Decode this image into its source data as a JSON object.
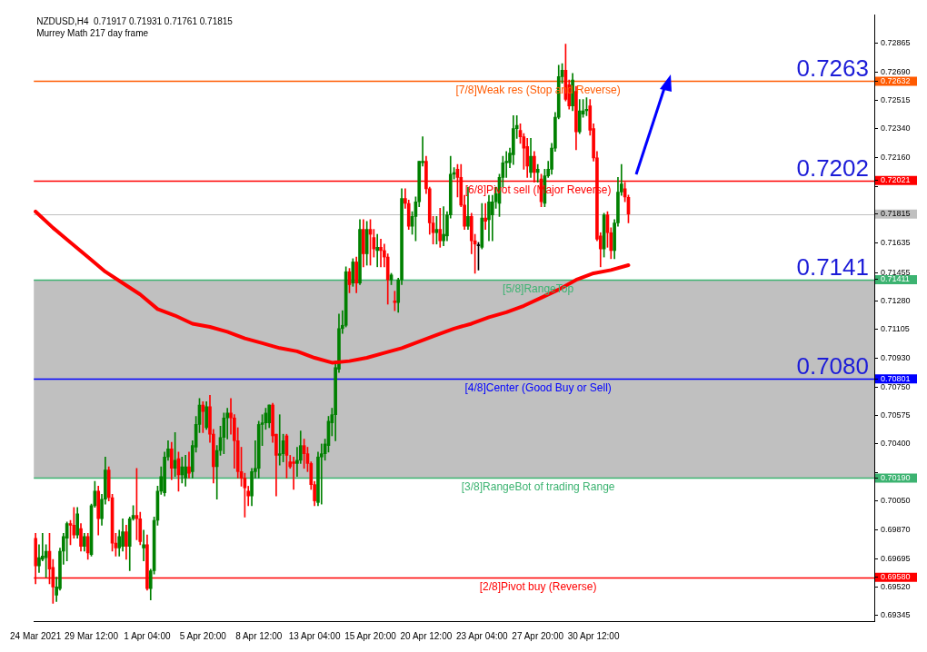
{
  "chart_data": {
    "type": "candlestick",
    "title": "NZDUSD,H4  0.71917 0.71931 0.71761 0.71815",
    "subtitle": "Murrey Math 217 day frame",
    "categories": [
      "24 Mar 2021",
      null,
      null,
      null,
      null,
      null,
      null,
      null,
      null,
      null,
      null,
      null,
      null,
      null,
      null,
      null,
      "29 Mar 12:00",
      null,
      null,
      null,
      null,
      null,
      null,
      null,
      null,
      null,
      null,
      null,
      null,
      null,
      null,
      null,
      "1 Apr 04:00",
      null,
      null,
      null,
      null,
      null,
      null,
      null,
      null,
      null,
      null,
      null,
      null,
      null,
      null,
      null,
      "5 Apr 20:00",
      null,
      null,
      null,
      null,
      null,
      null,
      null,
      null,
      null,
      null,
      null,
      null,
      null,
      null,
      null,
      "8 Apr 12:00",
      null,
      null,
      null,
      null,
      null,
      null,
      null,
      null,
      null,
      null,
      null,
      null,
      null,
      null,
      null,
      "13 Apr 04:00",
      null,
      null,
      null,
      null,
      null,
      null,
      null,
      null,
      null,
      null,
      null,
      null,
      null,
      null,
      null,
      "15 Apr 20:00",
      null,
      null,
      null,
      null,
      null,
      null,
      null,
      null,
      null,
      null,
      null,
      null,
      null,
      null,
      null,
      "20 Apr 12:00",
      null,
      null,
      null,
      null,
      null,
      null,
      null,
      null,
      null,
      null,
      null,
      null,
      null,
      null,
      null,
      "23 Apr 04:00",
      null,
      null,
      null,
      null,
      null,
      null,
      null,
      null,
      null,
      null,
      null,
      null,
      null,
      null,
      null,
      "27 Apr 20:00",
      null,
      null,
      null,
      null,
      null,
      null,
      null,
      null,
      null,
      null,
      null,
      null,
      null,
      null,
      null,
      "30 Apr 12:00",
      null,
      null,
      null,
      null,
      null,
      null,
      null,
      null,
      null,
      null,
      null,
      null,
      null,
      null,
      null,
      null,
      null,
      null,
      null,
      null,
      null,
      null,
      null,
      null,
      null,
      null,
      null,
      null,
      null,
      null,
      null,
      null,
      null,
      null,
      null,
      null,
      null,
      null,
      null,
      null,
      null,
      null,
      null,
      null,
      null,
      null,
      null,
      null,
      null,
      null,
      null,
      null,
      null,
      null,
      null,
      null,
      null,
      null,
      null,
      null,
      null,
      null,
      null,
      null,
      null,
      null,
      null,
      null,
      null,
      null,
      null,
      null,
      null,
      null,
      null,
      null,
      null,
      null,
      null,
      null
    ],
    "ohlc": [
      [
        0.6982,
        0.6985,
        0.6954,
        0.6965
      ],
      [
        0.6965,
        0.6978,
        0.6961,
        0.697
      ],
      [
        0.6969,
        0.6985,
        0.6968,
        0.6971
      ],
      [
        0.697,
        0.6978,
        0.6958,
        0.6974
      ],
      [
        0.6974,
        0.6985,
        0.6954,
        0.6963
      ],
      [
        0.6964,
        0.6969,
        0.6942,
        0.6952
      ],
      [
        0.6947,
        0.6958,
        0.6943,
        0.6952
      ],
      [
        0.6951,
        0.6976,
        0.695,
        0.6974
      ],
      [
        0.6974,
        0.6985,
        0.6966,
        0.6983
      ],
      [
        0.6982,
        0.6992,
        0.6968,
        0.6991
      ],
      [
        0.6991,
        0.6993,
        0.6978,
        0.699
      ],
      [
        0.699,
        0.7001,
        0.6982,
        0.6984
      ],
      [
        0.6984,
        0.7001,
        0.6982,
        0.6997
      ],
      [
        0.6988,
        0.6991,
        0.6974,
        0.6977
      ],
      [
        0.6977,
        0.6985,
        0.6974,
        0.6983
      ],
      [
        0.6983,
        0.6985,
        0.6969,
        0.6973
      ],
      [
        0.6972,
        0.7003,
        0.6971,
        0.7002
      ],
      [
        0.7002,
        0.7017,
        0.7001,
        0.7011
      ],
      [
        0.7011,
        0.7014,
        0.6984,
        0.6994
      ],
      [
        0.6994,
        0.7009,
        0.699,
        0.7006
      ],
      [
        0.7006,
        0.7032,
        0.7003,
        0.7024
      ],
      [
        0.7024,
        0.7026,
        0.7005,
        0.7007
      ],
      [
        0.7007,
        0.7009,
        0.6974,
        0.6979
      ],
      [
        0.6979,
        0.6985,
        0.6971,
        0.6976
      ],
      [
        0.6976,
        0.6987,
        0.6971,
        0.6983
      ],
      [
        0.6977,
        0.6994,
        0.6974,
        0.6986
      ],
      [
        0.6986,
        0.699,
        0.6969,
        0.6977
      ],
      [
        0.6977,
        0.6995,
        0.6962,
        0.6994
      ],
      [
        0.6994,
        0.7002,
        0.6993,
        0.6996
      ],
      [
        0.6996,
        0.7025,
        0.6981,
        0.6994
      ],
      [
        0.6994,
        0.6998,
        0.6978,
        0.698
      ],
      [
        0.6976,
        0.6987,
        0.6968,
        0.6978
      ],
      [
        0.6978,
        0.6984,
        0.695,
        0.6951
      ],
      [
        0.6951,
        0.6963,
        0.6944,
        0.6962
      ],
      [
        0.6962,
        0.6995,
        0.696,
        0.6993
      ],
      [
        0.6993,
        0.7014,
        0.699,
        0.7011
      ],
      [
        0.7011,
        0.7026,
        0.7009,
        0.702
      ],
      [
        0.701,
        0.7035,
        0.7008,
        0.7032
      ],
      [
        0.7032,
        0.7042,
        0.703,
        0.7037
      ],
      [
        0.7037,
        0.7041,
        0.7018,
        0.7025
      ],
      [
        0.7025,
        0.7047,
        0.702,
        0.703
      ],
      [
        0.7031,
        0.7035,
        0.7011,
        0.7021
      ],
      [
        0.7021,
        0.7032,
        0.7016,
        0.7026
      ],
      [
        0.7019,
        0.7033,
        0.7014,
        0.7026
      ],
      [
        0.7026,
        0.7035,
        0.7019,
        0.7022
      ],
      [
        0.7023,
        0.7042,
        0.7019,
        0.7039
      ],
      [
        0.7038,
        0.7057,
        0.7035,
        0.7052
      ],
      [
        0.7052,
        0.7068,
        0.7047,
        0.7064
      ],
      [
        0.7064,
        0.7066,
        0.7047,
        0.706
      ],
      [
        0.705,
        0.7066,
        0.7049,
        0.7063
      ],
      [
        0.7063,
        0.707,
        0.7041,
        0.7046
      ],
      [
        0.7046,
        0.7049,
        0.7016,
        0.7026
      ],
      [
        0.7026,
        0.7039,
        0.7006,
        0.7036
      ],
      [
        0.7036,
        0.7051,
        0.7033,
        0.7044
      ],
      [
        0.7044,
        0.7059,
        0.7034,
        0.7056
      ],
      [
        0.7056,
        0.7062,
        0.7043,
        0.7059
      ],
      [
        0.7059,
        0.7068,
        0.7046,
        0.7056
      ],
      [
        0.7056,
        0.7058,
        0.7025,
        0.7042
      ],
      [
        0.7042,
        0.705,
        0.7019,
        0.7023
      ],
      [
        0.7023,
        0.7038,
        0.7014,
        0.7019
      ],
      [
        0.7019,
        0.7022,
        0.6995,
        0.7013
      ],
      [
        0.7011,
        0.7014,
        0.7002,
        0.7008
      ],
      [
        0.7008,
        0.7025,
        0.7002,
        0.7023
      ],
      [
        0.7023,
        0.7042,
        0.7019,
        0.7025
      ],
      [
        0.7025,
        0.7054,
        0.7019,
        0.7052
      ],
      [
        0.7052,
        0.7058,
        0.7039,
        0.7053
      ],
      [
        0.7053,
        0.7062,
        0.7049,
        0.7059
      ],
      [
        0.7053,
        0.7064,
        0.705,
        0.7064
      ],
      [
        0.7064,
        0.7065,
        0.7041,
        0.7045
      ],
      [
        0.7046,
        0.7046,
        0.7008,
        0.7033
      ],
      [
        0.7033,
        0.7058,
        0.7027,
        0.7034
      ],
      [
        0.7034,
        0.7046,
        0.7029,
        0.7042
      ],
      [
        0.7045,
        0.7046,
        0.7019,
        0.7033
      ],
      [
        0.7029,
        0.7033,
        0.7025,
        0.7026
      ],
      [
        0.7029,
        0.7032,
        0.7012,
        0.7028
      ],
      [
        0.7028,
        0.7038,
        0.702,
        0.703
      ],
      [
        0.703,
        0.7048,
        0.7028,
        0.7039
      ],
      [
        0.7039,
        0.7043,
        0.7025,
        0.7034
      ],
      [
        0.7034,
        0.7038,
        0.7023,
        0.7028
      ],
      [
        0.7028,
        0.7029,
        0.7012,
        0.7015
      ],
      [
        0.7015,
        0.7017,
        0.7002,
        0.7005
      ],
      [
        0.7004,
        0.7035,
        0.7002,
        0.7032
      ],
      [
        0.7032,
        0.704,
        0.7003,
        0.7034
      ],
      [
        0.7034,
        0.7043,
        0.703,
        0.704
      ],
      [
        0.7039,
        0.7057,
        0.7035,
        0.7054
      ],
      [
        0.7053,
        0.7062,
        0.7045,
        0.7058
      ],
      [
        0.7058,
        0.7091,
        0.7042,
        0.7087
      ],
      [
        0.7086,
        0.712,
        0.7084,
        0.7111
      ],
      [
        0.7111,
        0.7122,
        0.7108,
        0.7113
      ],
      [
        0.7113,
        0.7149,
        0.7112,
        0.7146
      ],
      [
        0.7146,
        0.7148,
        0.7133,
        0.7138
      ],
      [
        0.7139,
        0.7154,
        0.7137,
        0.7152
      ],
      [
        0.7152,
        0.7155,
        0.7133,
        0.7139
      ],
      [
        0.7139,
        0.7178,
        0.7138,
        0.7172
      ],
      [
        0.7172,
        0.7178,
        0.7149,
        0.7157
      ],
      [
        0.7157,
        0.7177,
        0.715,
        0.7172
      ],
      [
        0.7172,
        0.7178,
        0.715,
        0.7169
      ],
      [
        0.7167,
        0.7172,
        0.7155,
        0.716
      ],
      [
        0.7159,
        0.7169,
        0.7149,
        0.7161
      ],
      [
        0.7161,
        0.7166,
        0.7149,
        0.7159
      ],
      [
        0.7159,
        0.7163,
        0.7149,
        0.7155
      ],
      [
        0.7155,
        0.7157,
        0.7126,
        0.7141
      ],
      [
        0.7141,
        0.7145,
        0.7138,
        0.7144
      ],
      [
        0.7128,
        0.7134,
        0.7122,
        0.7127
      ],
      [
        0.7127,
        0.7142,
        0.7121,
        0.7141
      ],
      [
        0.7141,
        0.7197,
        0.7138,
        0.7191
      ],
      [
        0.7191,
        0.7197,
        0.7185,
        0.7188
      ],
      [
        0.7188,
        0.719,
        0.7172,
        0.7174
      ],
      [
        0.7174,
        0.7183,
        0.7169,
        0.718
      ],
      [
        0.718,
        0.7192,
        0.7165,
        0.7189
      ],
      [
        0.7189,
        0.7214,
        0.7186,
        0.7214
      ],
      [
        0.7213,
        0.7229,
        0.7211,
        0.7214
      ],
      [
        0.7214,
        0.7217,
        0.7194,
        0.7197
      ],
      [
        0.7197,
        0.7198,
        0.7169,
        0.7176
      ],
      [
        0.7176,
        0.718,
        0.7163,
        0.717
      ],
      [
        0.717,
        0.718,
        0.7163,
        0.7172
      ],
      [
        0.7172,
        0.7185,
        0.7161,
        0.7165
      ],
      [
        0.7165,
        0.7186,
        0.7162,
        0.7169
      ],
      [
        0.7168,
        0.7183,
        0.7165,
        0.7181
      ],
      [
        0.7181,
        0.7217,
        0.7179,
        0.7206
      ],
      [
        0.7206,
        0.721,
        0.7203,
        0.7207
      ],
      [
        0.7209,
        0.7212,
        0.7192,
        0.7204
      ],
      [
        0.7204,
        0.7212,
        0.7186,
        0.7187
      ],
      [
        0.7187,
        0.7193,
        0.7172,
        0.7174
      ],
      [
        0.7174,
        0.7198,
        0.7172,
        0.718
      ],
      [
        0.718,
        0.7182,
        0.7157,
        0.7165
      ],
      [
        0.7165,
        0.7169,
        0.7145,
        0.7163
      ],
      [
        0.7162,
        0.7164,
        0.7147,
        0.7162
      ],
      [
        0.7161,
        0.7188,
        0.716,
        0.7179
      ],
      [
        0.7179,
        0.7188,
        0.7172,
        0.7177
      ],
      [
        0.7178,
        0.7193,
        0.7165,
        0.7189
      ],
      [
        0.7181,
        0.7193,
        0.7165,
        0.7189
      ],
      [
        0.7189,
        0.7198,
        0.7185,
        0.7194
      ],
      [
        0.7188,
        0.7206,
        0.718,
        0.7204
      ],
      [
        0.7204,
        0.7217,
        0.7198,
        0.7213
      ],
      [
        0.7213,
        0.722,
        0.7204,
        0.7214
      ],
      [
        0.7213,
        0.7222,
        0.721,
        0.7219
      ],
      [
        0.7218,
        0.7242,
        0.7212,
        0.7234
      ],
      [
        0.7234,
        0.7242,
        0.7228,
        0.7236
      ],
      [
        0.7233,
        0.7237,
        0.7225,
        0.7229
      ],
      [
        0.7229,
        0.7231,
        0.7209,
        0.7222
      ],
      [
        0.7223,
        0.7228,
        0.7204,
        0.7211
      ],
      [
        0.7207,
        0.7228,
        0.7204,
        0.7217
      ],
      [
        0.7217,
        0.722,
        0.7201,
        0.7207
      ],
      [
        0.7207,
        0.7212,
        0.7201,
        0.7209
      ],
      [
        0.7203,
        0.7206,
        0.7186,
        0.7189
      ],
      [
        0.7188,
        0.7209,
        0.7186,
        0.7205
      ],
      [
        0.7205,
        0.7214,
        0.7204,
        0.7209
      ],
      [
        0.7209,
        0.7225,
        0.7206,
        0.7222
      ],
      [
        0.7222,
        0.7244,
        0.722,
        0.7241
      ],
      [
        0.7241,
        0.7273,
        0.724,
        0.7266
      ],
      [
        0.7266,
        0.7274,
        0.7262,
        0.727
      ],
      [
        0.727,
        0.7286,
        0.7251,
        0.7252
      ],
      [
        0.7261,
        0.7264,
        0.7246,
        0.7248
      ],
      [
        0.7248,
        0.7268,
        0.7245,
        0.7264
      ],
      [
        0.7257,
        0.726,
        0.7221,
        0.7232
      ],
      [
        0.7232,
        0.7252,
        0.7231,
        0.7245
      ],
      [
        0.7243,
        0.7252,
        0.7241,
        0.7245
      ],
      [
        0.7245,
        0.7253,
        0.7242,
        0.7246
      ],
      [
        0.7248,
        0.7252,
        0.723,
        0.7233
      ],
      [
        0.7234,
        0.7237,
        0.7214,
        0.7216
      ],
      [
        0.7216,
        0.722,
        0.7165,
        0.7166
      ],
      [
        0.7168,
        0.717,
        0.7149,
        0.716
      ],
      [
        0.716,
        0.7182,
        0.7155,
        0.7181
      ],
      [
        0.7181,
        0.7183,
        0.7161,
        0.717
      ],
      [
        0.717,
        0.7173,
        0.7154,
        0.7159
      ],
      [
        0.7159,
        0.7178,
        0.7154,
        0.7176
      ],
      [
        0.7176,
        0.7204,
        0.7174,
        0.7195
      ],
      [
        0.7195,
        0.7212,
        0.7193,
        0.72
      ],
      [
        0.7197,
        0.7201,
        0.7189,
        0.7192
      ],
      [
        0.71917,
        0.71931,
        0.71761,
        0.71815
      ],
      null,
      null,
      null,
      null,
      null,
      null,
      null,
      null,
      null,
      null,
      null,
      null,
      null,
      null,
      null,
      null,
      null,
      null,
      null,
      null,
      null,
      null,
      null,
      null,
      null,
      null,
      null,
      null,
      null,
      null,
      null,
      null,
      null,
      null,
      null,
      null,
      null,
      null,
      null,
      null,
      null,
      null,
      null,
      null,
      null,
      null,
      null,
      null,
      null,
      null,
      null,
      null,
      null,
      null,
      null,
      null,
      null,
      null,
      null,
      null,
      null,
      null,
      null,
      null,
      null,
      null,
      null,
      null,
      null,
      null
    ],
    "series": [
      {
        "type": "line",
        "color": "#ff0000",
        "values": [
          0.7183,
          null,
          null,
          null,
          null,
          0.7173,
          null,
          null,
          null,
          null,
          0.7164,
          null,
          null,
          null,
          null,
          0.7155,
          null,
          null,
          null,
          null,
          0.7146,
          null,
          null,
          null,
          null,
          0.7139,
          null,
          null,
          null,
          null,
          0.7132,
          null,
          null,
          null,
          null,
          0.7123,
          null,
          null,
          null,
          null,
          0.7119,
          null,
          null,
          null,
          null,
          0.7114,
          null,
          null,
          null,
          null,
          0.7112,
          null,
          null,
          null,
          null,
          0.7109,
          null,
          null,
          null,
          null,
          0.7105,
          null,
          null,
          null,
          null,
          0.7102,
          null,
          null,
          null,
          null,
          0.7099,
          null,
          null,
          null,
          null,
          0.7097,
          null,
          null,
          null,
          null,
          0.7093,
          null,
          null,
          null,
          null,
          0.709,
          null,
          null,
          null,
          null,
          0.7091,
          null,
          null,
          null,
          null,
          0.7093,
          null,
          null,
          null,
          null,
          0.7096,
          null,
          null,
          null,
          null,
          0.7099,
          null,
          null,
          null,
          null,
          0.7103,
          null,
          null,
          null,
          null,
          0.7107,
          null,
          null,
          null,
          null,
          0.7111,
          null,
          null,
          null,
          null,
          0.7114,
          null,
          null,
          null,
          null,
          0.7118,
          null,
          null,
          null,
          null,
          0.7121,
          null,
          null,
          null,
          null,
          0.7125,
          null,
          null,
          null,
          null,
          0.713,
          null,
          null,
          null,
          null,
          0.7135,
          null,
          null,
          null,
          null,
          0.7141,
          null,
          null,
          null,
          null,
          0.7145,
          null,
          null,
          null,
          null,
          0.7147,
          null,
          null,
          null,
          null,
          0.715,
          null,
          null,
          null,
          null,
          null,
          null,
          null,
          null,
          null,
          null,
          null,
          null,
          null,
          null,
          null,
          null,
          null,
          null,
          null,
          null,
          null,
          null,
          null,
          null,
          null,
          null,
          null,
          null,
          null,
          null,
          null,
          null,
          null,
          null,
          null,
          null,
          null,
          null,
          null,
          null,
          null,
          null,
          null,
          null,
          null,
          null,
          null,
          null,
          null,
          null,
          null,
          null,
          null,
          null,
          null,
          null,
          null,
          null,
          null,
          null,
          null,
          null,
          null,
          null,
          null,
          null,
          null,
          null,
          null,
          null
        ]
      }
    ],
    "ylim": [
      0.6931,
      0.7304
    ],
    "yticks": [
      {
        "value": 0.69345,
        "label": "0.69345"
      },
      {
        "value": 0.6952,
        "label": "0.69520"
      },
      {
        "value": 0.69695,
        "label": "0.69695"
      },
      {
        "value": 0.6987,
        "label": "0.69870"
      },
      {
        "value": 0.7005,
        "label": "0.70050"
      },
      {
        "value": 0.70225,
        "label": null
      },
      {
        "value": 0.6958,
        "label": "0.69580"
      },
      {
        "value": 0.7019,
        "label": "0.70190"
      },
      {
        "value": 0.70801,
        "label": "0.70801"
      },
      {
        "value": 0.71411,
        "label": "0.71411"
      },
      {
        "value": 0.71815,
        "label": "0.71815"
      },
      {
        "value": 0.72021,
        "label": "0.72021"
      },
      {
        "value": 0.72632,
        "label": "0.72632"
      },
      {
        "value": 0.704,
        "label": "0.70400"
      },
      {
        "value": 0.70575,
        "label": "0.70575"
      },
      {
        "value": 0.7075,
        "label": "0.70750"
      },
      {
        "value": 0.7093,
        "label": "0.70930"
      },
      {
        "value": 0.71105,
        "label": "0.71105"
      },
      {
        "value": 0.7128,
        "label": "0.71280"
      },
      {
        "value": 0.71455,
        "label": "0.71455"
      },
      {
        "value": 0.71635,
        "label": "0.71635"
      },
      {
        "value": 0.71985,
        "label": null
      },
      {
        "value": 0.7216,
        "label": "0.72160"
      },
      {
        "value": 0.7234,
        "label": "0.72340"
      },
      {
        "value": 0.72515,
        "label": "0.72515"
      },
      {
        "value": 0.7269,
        "label": "0.72690"
      },
      {
        "value": 0.72865,
        "label": "0.72865"
      }
    ],
    "bands": [
      {
        "axis": "y",
        "from": 0.7019,
        "to": 0.71411,
        "color": "#c0c0c0"
      }
    ],
    "ref_lines": [
      {
        "axis": "y",
        "value": 0.72632,
        "label": "[7/8]Weak res (Stop and Reverse)",
        "color": "#ff5a00"
      },
      {
        "axis": "y",
        "value": 0.72021,
        "label": "[6/8]Pivot sell (Major Reverse)",
        "color": "#ff0000"
      },
      {
        "axis": "y",
        "value": 0.71815,
        "label": null,
        "color": "#c0c0c0"
      },
      {
        "axis": "y",
        "value": 0.71411,
        "label": "[5/8]RangeTop",
        "color": "#3cb371"
      },
      {
        "axis": "y",
        "value": 0.70801,
        "label": "[4/8]Center (Good Buy or Sell)",
        "color": "#0000ff"
      },
      {
        "axis": "y",
        "value": 0.7019,
        "label": "[3/8]RangeBot of trading Range",
        "color": "#3cb371"
      },
      {
        "axis": "y",
        "value": 0.6958,
        "label": "[2/8]Pivot buy (Reverse)",
        "color": "#ff0000"
      }
    ],
    "annotations": [
      {
        "text": "0.7263",
        "y": 0.72632
      },
      {
        "text": "0.7202",
        "y": 0.72021
      },
      {
        "text": "0.7141",
        "y": 0.71411
      },
      {
        "text": "0.7080",
        "y": 0.70801
      }
    ]
  }
}
